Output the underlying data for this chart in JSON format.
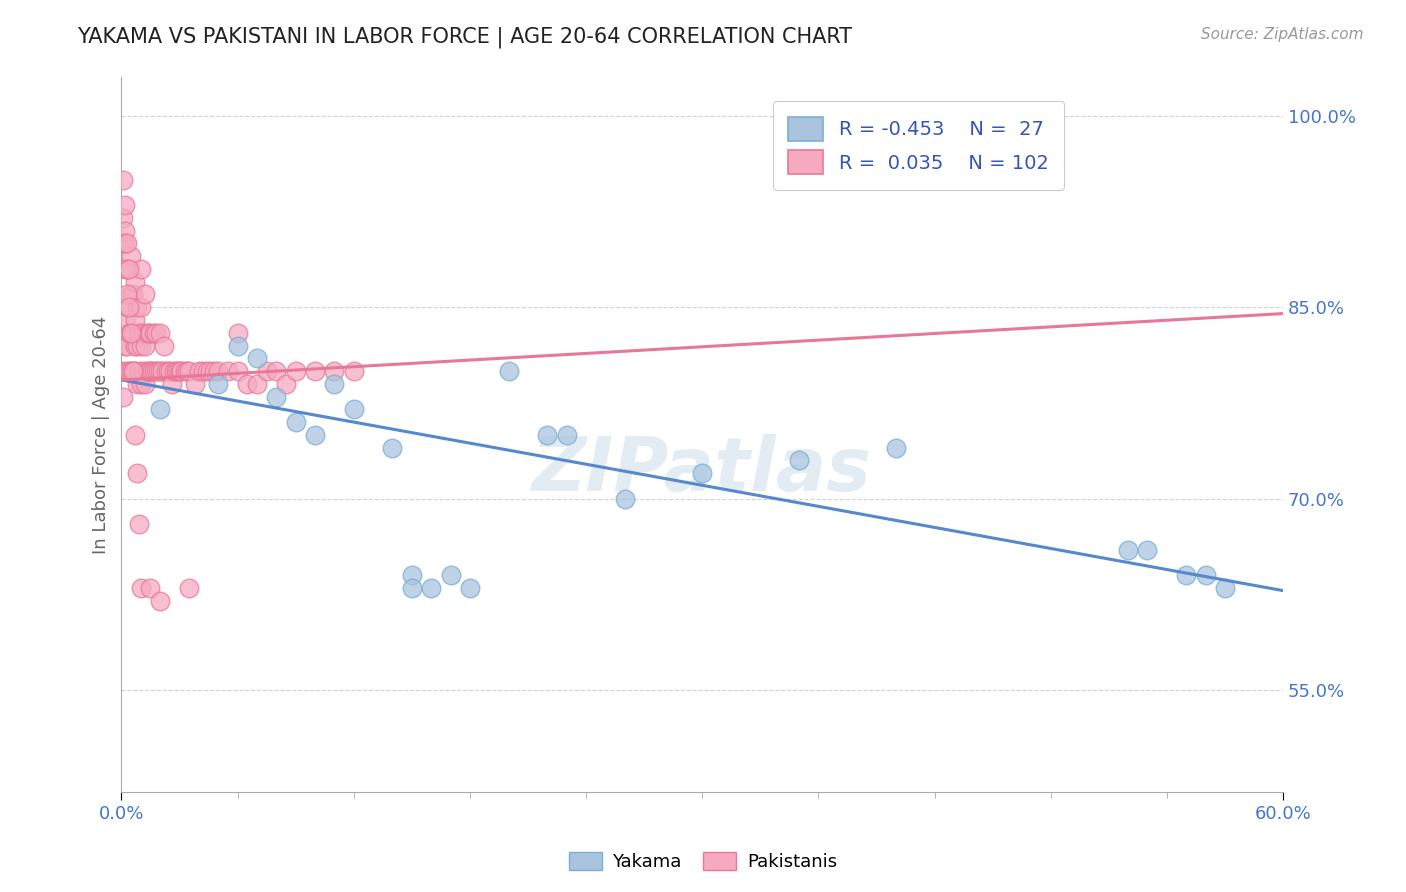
{
  "title": "YAKAMA VS PAKISTANI IN LABOR FORCE | AGE 20-64 CORRELATION CHART",
  "source_text": "Source: ZipAtlas.com",
  "ylabel": "In Labor Force | Age 20-64",
  "xlim": [
    0.0,
    0.6
  ],
  "ylim": [
    0.47,
    1.03
  ],
  "ytick_positions": [
    0.55,
    0.7,
    0.85,
    1.0
  ],
  "ytick_labels": [
    "55.0%",
    "70.0%",
    "85.0%",
    "100.0%"
  ],
  "yakama_color": "#aac4e0",
  "pakistani_color": "#f5aabf",
  "yakama_edge_color": "#7aadd4",
  "pakistani_edge_color": "#e87898",
  "trend_yakama_color": "#5588cc",
  "trend_pakistani_color": "#e87898",
  "R_yakama": -0.453,
  "N_yakama": 27,
  "R_pakistani": 0.035,
  "N_pakistani": 102,
  "legend_label_yakama": "Yakama",
  "legend_label_pakistani": "Pakistanis",
  "watermark": "ZIPatlas",
  "background_color": "#ffffff",
  "grid_color": "#cccccc",
  "title_color": "#222222",
  "axis_label_color": "#4477cc",
  "legend_text_color": "#3355bb",
  "yakama_scatter_x": [
    0.02,
    0.05,
    0.06,
    0.07,
    0.08,
    0.09,
    0.1,
    0.11,
    0.12,
    0.14,
    0.15,
    0.17,
    0.2,
    0.22,
    0.23,
    0.26,
    0.3,
    0.35,
    0.4,
    0.52,
    0.53,
    0.55,
    0.56,
    0.57,
    0.15,
    0.16,
    0.18
  ],
  "yakama_scatter_y": [
    0.77,
    0.79,
    0.82,
    0.81,
    0.78,
    0.76,
    0.75,
    0.79,
    0.77,
    0.74,
    0.64,
    0.64,
    0.8,
    0.75,
    0.75,
    0.7,
    0.72,
    0.73,
    0.74,
    0.66,
    0.66,
    0.64,
    0.64,
    0.63,
    0.63,
    0.63,
    0.63
  ],
  "pakistani_scatter_x": [
    0.001,
    0.001,
    0.002,
    0.002,
    0.003,
    0.003,
    0.003,
    0.004,
    0.004,
    0.005,
    0.005,
    0.005,
    0.005,
    0.006,
    0.006,
    0.006,
    0.007,
    0.007,
    0.007,
    0.007,
    0.008,
    0.008,
    0.008,
    0.009,
    0.009,
    0.01,
    0.01,
    0.01,
    0.01,
    0.011,
    0.011,
    0.012,
    0.012,
    0.012,
    0.013,
    0.013,
    0.014,
    0.014,
    0.015,
    0.015,
    0.016,
    0.017,
    0.017,
    0.018,
    0.018,
    0.019,
    0.02,
    0.02,
    0.021,
    0.022,
    0.023,
    0.024,
    0.025,
    0.026,
    0.027,
    0.028,
    0.029,
    0.03,
    0.031,
    0.033,
    0.034,
    0.035,
    0.038,
    0.04,
    0.042,
    0.044,
    0.046,
    0.048,
    0.05,
    0.055,
    0.06,
    0.065,
    0.07,
    0.075,
    0.08,
    0.085,
    0.09,
    0.1,
    0.11,
    0.12,
    0.001,
    0.001,
    0.001,
    0.002,
    0.002,
    0.002,
    0.002,
    0.003,
    0.003,
    0.003,
    0.004,
    0.004,
    0.005,
    0.006,
    0.007,
    0.008,
    0.009,
    0.01,
    0.015,
    0.02,
    0.035,
    0.06
  ],
  "pakistani_scatter_y": [
    0.78,
    0.8,
    0.82,
    0.84,
    0.8,
    0.82,
    0.85,
    0.8,
    0.83,
    0.8,
    0.83,
    0.86,
    0.89,
    0.8,
    0.83,
    0.86,
    0.8,
    0.82,
    0.84,
    0.87,
    0.79,
    0.82,
    0.85,
    0.8,
    0.83,
    0.79,
    0.82,
    0.85,
    0.88,
    0.8,
    0.83,
    0.79,
    0.82,
    0.86,
    0.8,
    0.83,
    0.8,
    0.83,
    0.8,
    0.83,
    0.8,
    0.8,
    0.83,
    0.8,
    0.83,
    0.8,
    0.8,
    0.83,
    0.8,
    0.82,
    0.8,
    0.8,
    0.8,
    0.79,
    0.8,
    0.8,
    0.8,
    0.8,
    0.8,
    0.8,
    0.8,
    0.8,
    0.79,
    0.8,
    0.8,
    0.8,
    0.8,
    0.8,
    0.8,
    0.8,
    0.8,
    0.79,
    0.79,
    0.8,
    0.8,
    0.79,
    0.8,
    0.8,
    0.8,
    0.8,
    0.9,
    0.92,
    0.95,
    0.93,
    0.91,
    0.9,
    0.88,
    0.9,
    0.88,
    0.86,
    0.88,
    0.85,
    0.83,
    0.8,
    0.75,
    0.72,
    0.68,
    0.63,
    0.63,
    0.62,
    0.63,
    0.83
  ],
  "trend_yakama_x0": 0.0,
  "trend_yakama_y0": 0.793,
  "trend_yakama_x1": 0.6,
  "trend_yakama_y1": 0.628,
  "trend_pakistani_x0": 0.0,
  "trend_pakistani_y0": 0.793,
  "trend_pakistani_x1": 0.6,
  "trend_pakistani_y1": 0.845
}
